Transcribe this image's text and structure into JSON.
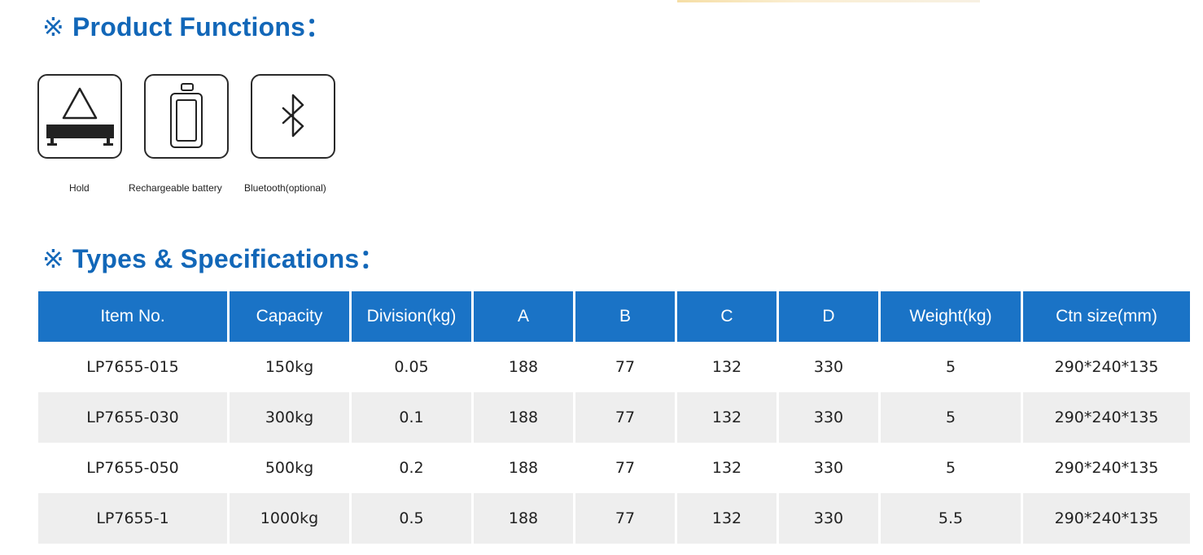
{
  "product_functions": {
    "mark": "※",
    "title": "Product Functions",
    "colon": "："
  },
  "functions": [
    {
      "label": "Hold",
      "icon": "scale-platform-icon"
    },
    {
      "label": "Rechargeable battery",
      "icon": "battery-icon"
    },
    {
      "label": "Bluetooth(optional)",
      "icon": "bluetooth-icon"
    }
  ],
  "specifications": {
    "mark": "※",
    "title": "Types & Specifications",
    "colon": "："
  },
  "table": {
    "headers": [
      "Item No.",
      "Capacity",
      "Division(kg)",
      "A",
      "B",
      "C",
      "D",
      "Weight(kg)",
      "Ctn size(mm)"
    ],
    "rows": [
      [
        "LP7655-015",
        "150kg",
        "0.05",
        "188",
        "77",
        "132",
        "330",
        "5",
        "290*240*135"
      ],
      [
        "LP7655-030",
        "300kg",
        "0.1",
        "188",
        "77",
        "132",
        "330",
        "5",
        "290*240*135"
      ],
      [
        "LP7655-050",
        "500kg",
        "0.2",
        "188",
        "77",
        "132",
        "330",
        "5",
        "290*240*135"
      ],
      [
        "LP7655-1",
        "1000kg",
        "0.5",
        "188",
        "77",
        "132",
        "330",
        "5.5",
        "290*240*135"
      ]
    ]
  },
  "colors": {
    "title_blue": "#1267b8",
    "header_blue": "#1a73c6",
    "row_alt": "#eeeeee"
  }
}
